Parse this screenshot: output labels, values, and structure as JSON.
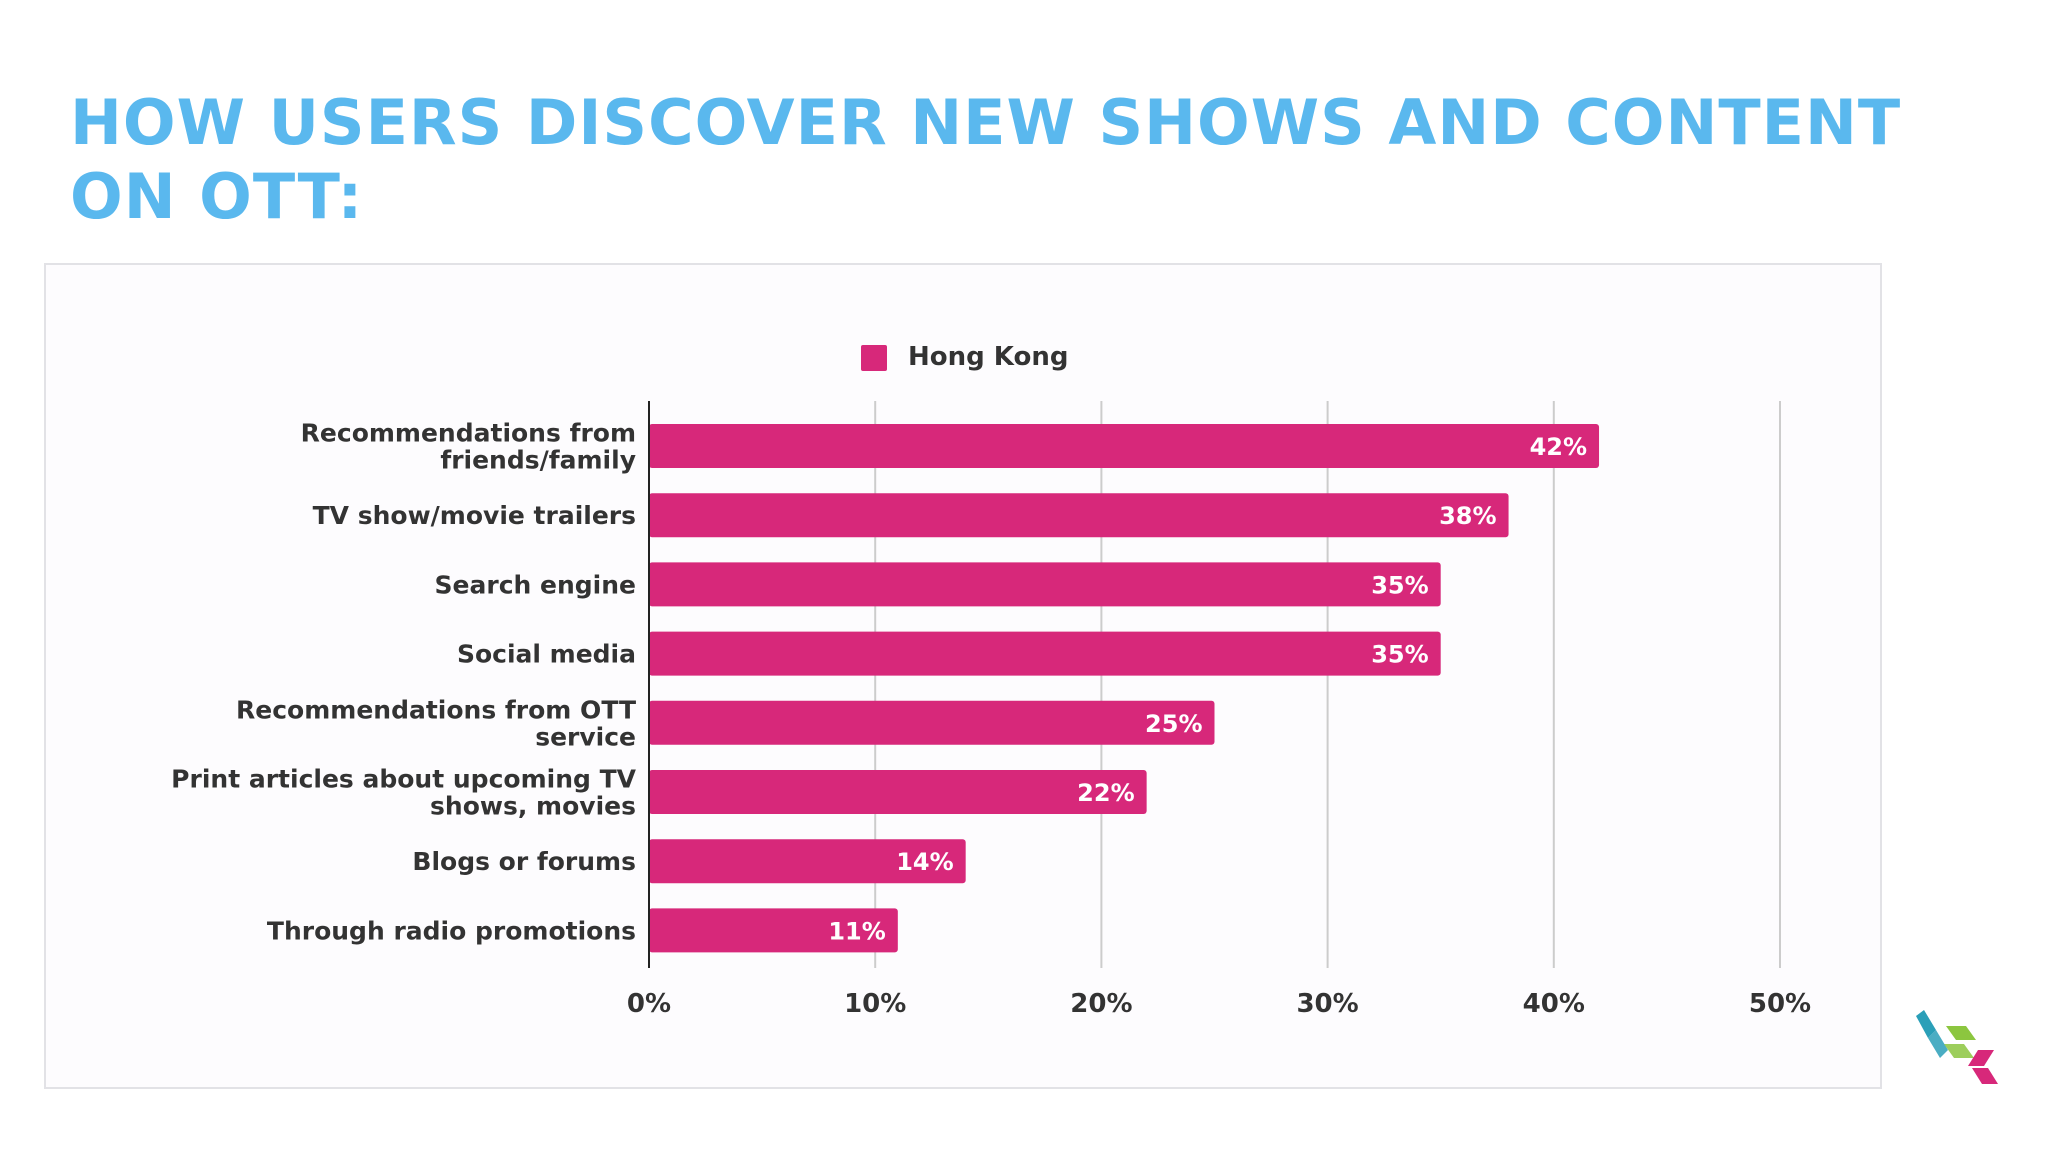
{
  "slide": {
    "title_line1": "HOW USERS DISCOVER NEW SHOWS AND CONTENT",
    "title_line2": "ON OTT:"
  },
  "colors": {
    "title": "#5ab8ee",
    "bar": "#d7287a",
    "grid": "#cccccc",
    "axis": "#222222",
    "text": "#333333",
    "value_text": "#ffffff",
    "logo": [
      "#2a9fb8",
      "#8cc63f",
      "#d7287a"
    ]
  },
  "logo": {
    "icon": "brand-logo-icon"
  },
  "chart_data": {
    "type": "bar",
    "orientation": "horizontal",
    "title": "",
    "xlabel": "",
    "ylabel": "",
    "legend": {
      "placement": "top-center",
      "entries": [
        "Hong Kong"
      ]
    },
    "categories": [
      [
        "Recommendations from",
        "friends/family"
      ],
      [
        "TV show/movie trailers"
      ],
      [
        "Search engine"
      ],
      [
        "Social media"
      ],
      [
        "Recommendations from OTT",
        "service"
      ],
      [
        "Print articles about upcoming TV",
        "shows, movies"
      ],
      [
        "Blogs or forums"
      ],
      [
        "Through radio promotions"
      ]
    ],
    "series": [
      {
        "name": "Hong Kong",
        "values": [
          42,
          38,
          35,
          35,
          25,
          22,
          14,
          11
        ],
        "labels": [
          "42%",
          "38%",
          "35%",
          "35%",
          "25%",
          "22%",
          "14%",
          "11%"
        ]
      }
    ],
    "xlim": [
      0,
      50
    ],
    "xticks": [
      0,
      10,
      20,
      30,
      40,
      50
    ],
    "xtick_labels": [
      "0%",
      "10%",
      "20%",
      "30%",
      "40%",
      "50%"
    ],
    "grid": true
  }
}
